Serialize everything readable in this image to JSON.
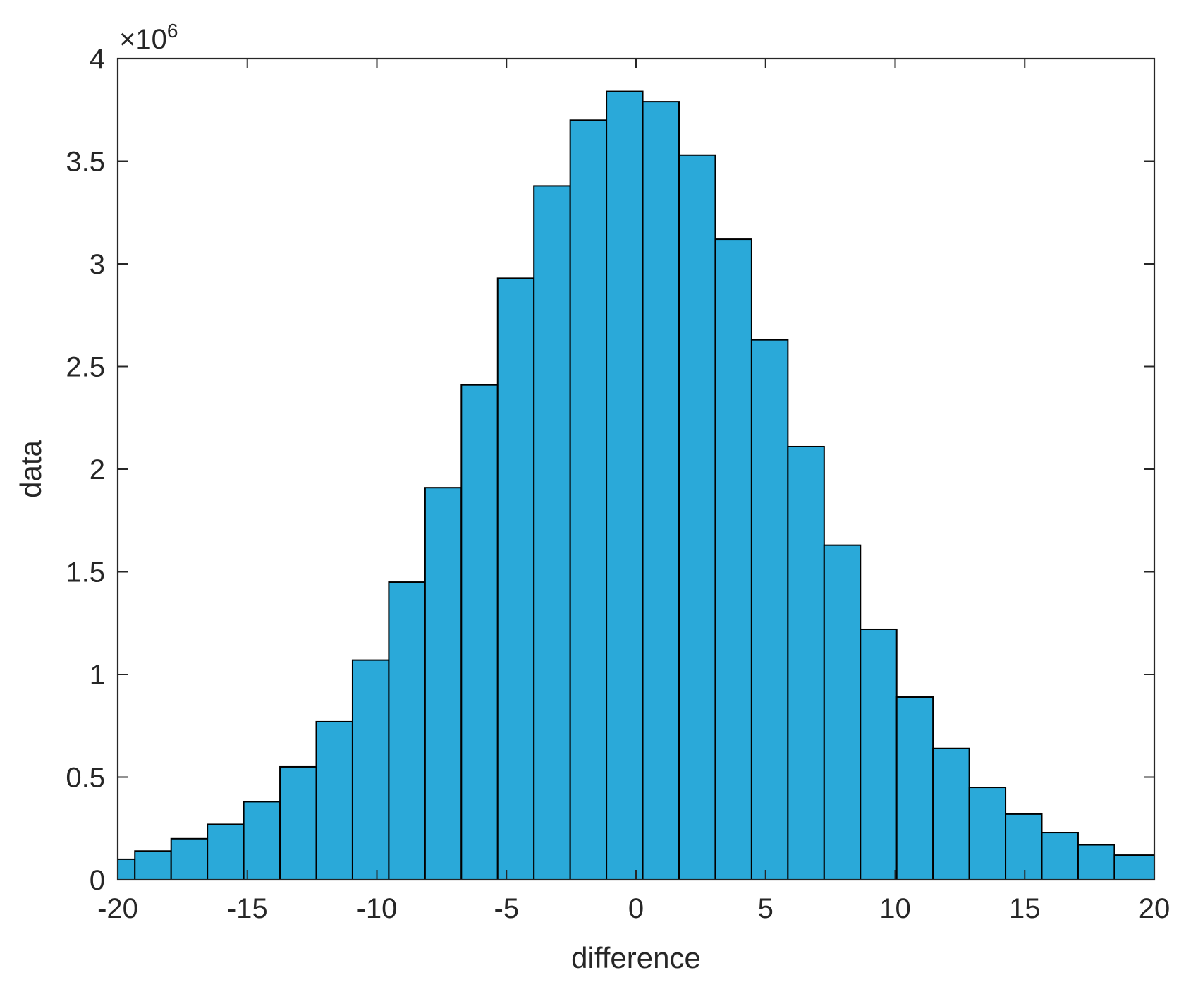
{
  "chart_data": {
    "type": "bar",
    "title": "",
    "xlabel": "difference",
    "ylabel": "data",
    "y_exponent_base": "×10",
    "y_exponent_power": "6",
    "xlim": [
      -20,
      20
    ],
    "ylim": [
      0,
      4
    ],
    "xticks": [
      -20,
      -15,
      -10,
      -5,
      0,
      5,
      10,
      15,
      20
    ],
    "xtick_labels": [
      "-20",
      "-15",
      "-10",
      "-5",
      "0",
      "5",
      "10",
      "15",
      "20"
    ],
    "yticks": [
      0,
      0.5,
      1,
      1.5,
      2,
      2.5,
      3,
      3.5,
      4
    ],
    "ytick_labels": [
      "0",
      "0.5",
      "1",
      "1.5",
      "2",
      "2.5",
      "3",
      "3.5",
      "4"
    ],
    "bar_color": "#2AA9D9",
    "bar_edge_color": "#000000",
    "grid": false,
    "bins": [
      {
        "start": -20.0,
        "end": -19.34,
        "value": 0.1
      },
      {
        "start": -19.34,
        "end": -17.94,
        "value": 0.14
      },
      {
        "start": -17.94,
        "end": -16.54,
        "value": 0.2
      },
      {
        "start": -16.54,
        "end": -15.14,
        "value": 0.27
      },
      {
        "start": -15.14,
        "end": -13.74,
        "value": 0.38
      },
      {
        "start": -13.74,
        "end": -12.34,
        "value": 0.55
      },
      {
        "start": -12.34,
        "end": -10.94,
        "value": 0.77
      },
      {
        "start": -10.94,
        "end": -9.54,
        "value": 1.07
      },
      {
        "start": -9.54,
        "end": -8.14,
        "value": 1.45
      },
      {
        "start": -8.14,
        "end": -6.74,
        "value": 1.91
      },
      {
        "start": -6.74,
        "end": -5.34,
        "value": 2.41
      },
      {
        "start": -5.34,
        "end": -3.94,
        "value": 2.93
      },
      {
        "start": -3.94,
        "end": -2.54,
        "value": 3.38
      },
      {
        "start": -2.54,
        "end": -1.14,
        "value": 3.7
      },
      {
        "start": -1.14,
        "end": 0.26,
        "value": 3.84
      },
      {
        "start": 0.26,
        "end": 1.66,
        "value": 3.79
      },
      {
        "start": 1.66,
        "end": 3.06,
        "value": 3.53
      },
      {
        "start": 3.06,
        "end": 4.46,
        "value": 3.12
      },
      {
        "start": 4.46,
        "end": 5.86,
        "value": 2.63
      },
      {
        "start": 5.86,
        "end": 7.26,
        "value": 2.11
      },
      {
        "start": 7.26,
        "end": 8.66,
        "value": 1.63
      },
      {
        "start": 8.66,
        "end": 10.06,
        "value": 1.22
      },
      {
        "start": 10.06,
        "end": 11.46,
        "value": 0.89
      },
      {
        "start": 11.46,
        "end": 12.86,
        "value": 0.64
      },
      {
        "start": 12.86,
        "end": 14.26,
        "value": 0.45
      },
      {
        "start": 14.26,
        "end": 15.66,
        "value": 0.32
      },
      {
        "start": 15.66,
        "end": 17.06,
        "value": 0.23
      },
      {
        "start": 17.06,
        "end": 18.46,
        "value": 0.17
      },
      {
        "start": 18.46,
        "end": 20.0,
        "value": 0.12
      }
    ]
  }
}
